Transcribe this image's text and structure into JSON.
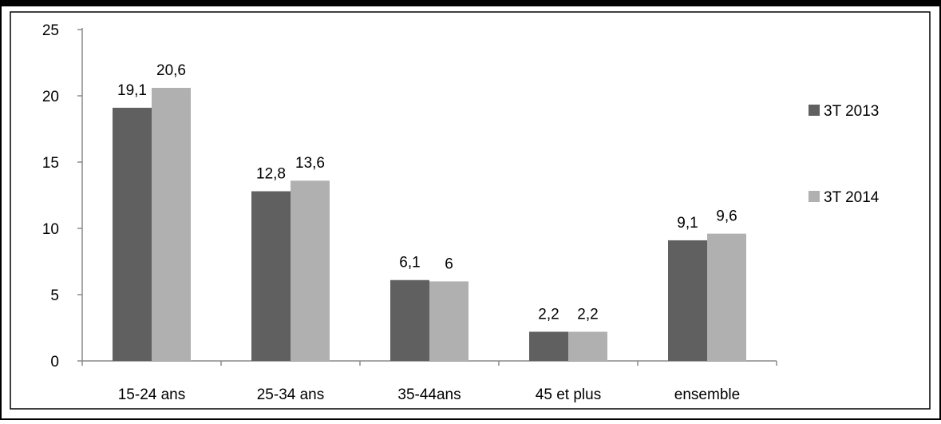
{
  "chart_data": {
    "type": "bar",
    "categories": [
      "15-24 ans",
      "25-34 ans",
      "35-44ans",
      "45 et plus",
      "ensemble"
    ],
    "series": [
      {
        "name": "3T 2013",
        "values": [
          19.1,
          12.8,
          6.1,
          2.2,
          9.1
        ],
        "labels": [
          "19,1",
          "12,8",
          "6,1",
          "2,2",
          "9,1"
        ]
      },
      {
        "name": "3T 2014",
        "values": [
          20.6,
          13.6,
          6,
          2.2,
          9.6
        ],
        "labels": [
          "20,6",
          "13,6",
          "6",
          "2,2",
          "9,6"
        ]
      }
    ],
    "y_ticks": [
      "0",
      "5",
      "10",
      "15",
      "20",
      "25"
    ],
    "ylim": [
      0,
      25
    ],
    "grid": false,
    "legend_position": "right",
    "colors": {
      "3T 2013": "#606060",
      "3T 2014": "#b0b0b0"
    }
  }
}
